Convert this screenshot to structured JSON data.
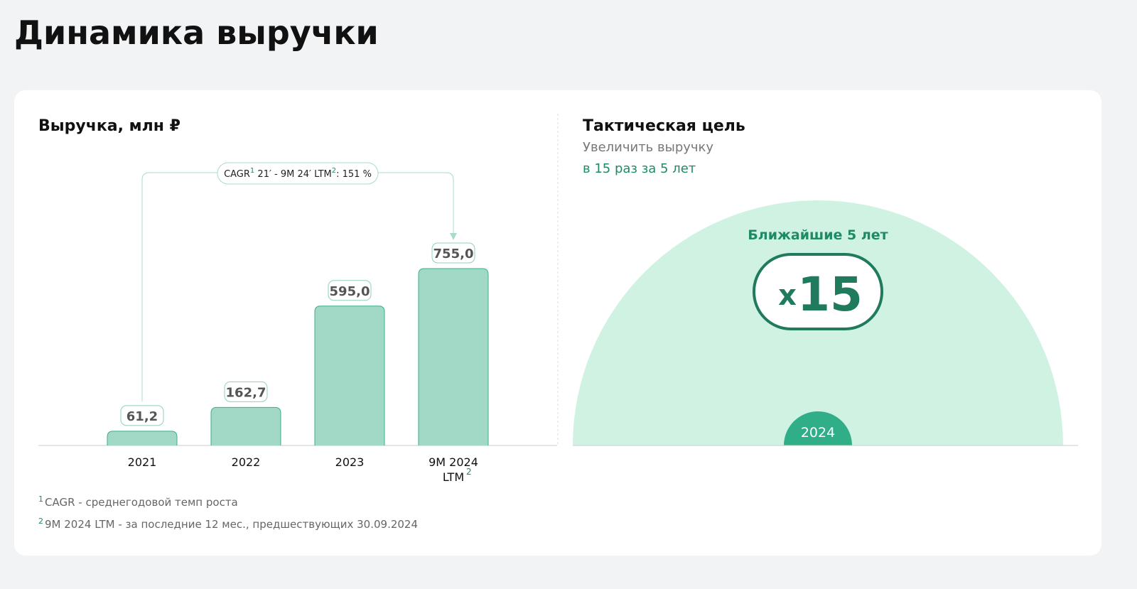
{
  "header": {
    "title": "Динамика выручки"
  },
  "chart_data": {
    "type": "bar",
    "title": "Выручка, млн ₽",
    "categories": [
      "2021",
      "2022",
      "2023",
      "9M 2024 LTM"
    ],
    "category_notes": [
      null,
      null,
      null,
      "2"
    ],
    "values": [
      61.2,
      162.7,
      595.0,
      755.0
    ],
    "value_labels": [
      "61,2",
      "162,7",
      "595,0",
      "755,0"
    ],
    "color": "#a1d8c6",
    "annotation": {
      "segments": [
        {
          "text": "CAGR"
        },
        {
          "sup": "1"
        },
        {
          "text": " 21′ - 9M 24′ LTM"
        },
        {
          "sup": "2"
        },
        {
          "text": ": 151 %"
        }
      ]
    },
    "footnotes": [
      {
        "mark": "1",
        "text": "CAGR - среднегодовой темп роста"
      },
      {
        "mark": "2",
        "text": "9M 2024 LTM - за последние 12 мес., предшествующих 30.09.2024"
      }
    ]
  },
  "goal": {
    "title": "Тактическая цель",
    "subtitle": "Увеличить выручку",
    "highlight": "в 15 раз за 5 лет",
    "arc_label": "Ближайшие 5 лет",
    "multiplier_prefix": "x",
    "multiplier": "15",
    "start_year": "2024"
  }
}
